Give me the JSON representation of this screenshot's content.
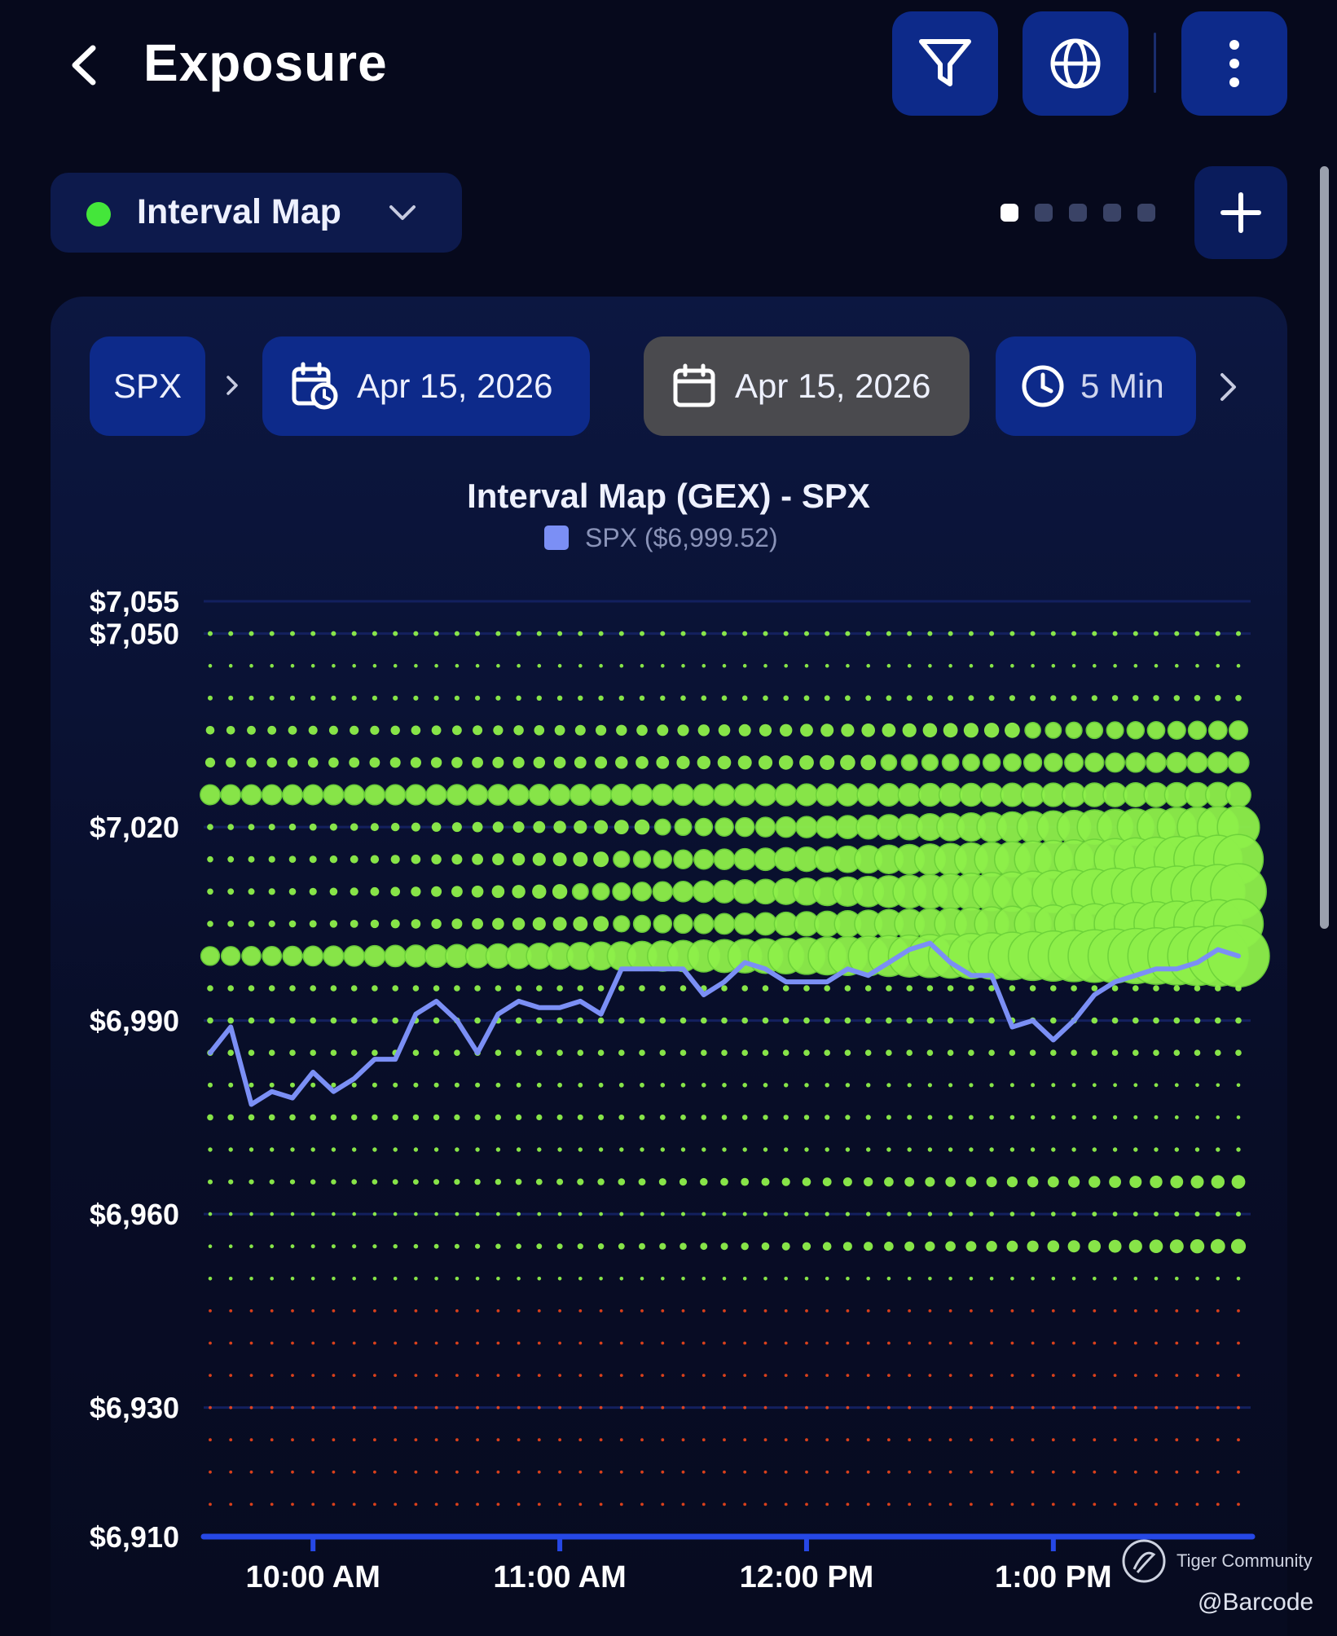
{
  "header": {
    "title": "Exposure",
    "icons": [
      "back-arrow-icon",
      "filter-icon",
      "globe-icon",
      "more-vertical-icon"
    ]
  },
  "selector": {
    "label": "Interval Map",
    "status_color": "#44e63a"
  },
  "pager": {
    "count": 5,
    "active_index": 0
  },
  "chips": {
    "symbol": "SPX",
    "start_date": "Apr 15, 2026",
    "end_date": "Apr 15, 2026",
    "interval": "5 Min"
  },
  "watermark": "Tiger Community",
  "credit": "@Barcode",
  "colors": {
    "accent": "#0d2a8a",
    "positive": "#8ef04a",
    "negative": "#ff4a1a",
    "price_line": "#7b8ff5"
  },
  "chart_data": {
    "type": "scatter",
    "title": "Interval Map (GEX) - SPX",
    "legend": [
      {
        "name": "SPX ($6,999.52)",
        "color": "#7b8ff5"
      }
    ],
    "y_ticks": [
      "$7,055",
      "$7,050",
      "$7,020",
      "$6,990",
      "$6,960",
      "$6,930",
      "$6,910"
    ],
    "y_tick_values": [
      7055,
      7050,
      7020,
      6990,
      6960,
      6930,
      6910
    ],
    "x_ticks": [
      "10:00 AM",
      "11:00 AM",
      "12:00 PM",
      "1:00 PM"
    ],
    "x_tick_minutes": [
      600,
      660,
      720,
      780
    ],
    "ylim": [
      6910,
      7055
    ],
    "x_range": {
      "start": "09:35",
      "end": "13:45",
      "step_minutes": 5
    },
    "strike_rows": [
      7050,
      7045,
      7040,
      7035,
      7030,
      7025,
      7020,
      7015,
      7010,
      7005,
      7000,
      6995,
      6990,
      6985,
      6980,
      6975,
      6970,
      6965,
      6960,
      6955,
      6950,
      6945,
      6940,
      6935,
      6930,
      6925,
      6920,
      6915
    ],
    "gex_profile": {
      "7050": {
        "sign": 1,
        "start": 0.08,
        "end": 0.08
      },
      "7045": {
        "sign": 1,
        "start": 0.06,
        "end": 0.06
      },
      "7040": {
        "sign": 1,
        "start": 0.08,
        "end": 0.1
      },
      "7035": {
        "sign": 1,
        "start": 0.14,
        "end": 0.3
      },
      "7030": {
        "sign": 1,
        "start": 0.16,
        "end": 0.34
      },
      "7025": {
        "sign": 1,
        "start": 0.32,
        "end": 0.4
      },
      "7020": {
        "sign": 1,
        "start": 0.1,
        "end": 0.68
      },
      "7015": {
        "sign": 1,
        "start": 0.1,
        "end": 0.8
      },
      "7010": {
        "sign": 1,
        "start": 0.1,
        "end": 0.9
      },
      "7005": {
        "sign": 1,
        "start": 0.1,
        "end": 0.8
      },
      "7000": {
        "sign": 1,
        "start": 0.3,
        "end": 1.0
      },
      "6995": {
        "sign": 1,
        "start": 0.1,
        "end": 0.1
      },
      "6990": {
        "sign": 1,
        "start": 0.1,
        "end": 0.1
      },
      "6985": {
        "sign": 1,
        "start": 0.1,
        "end": 0.1
      },
      "6980": {
        "sign": 1,
        "start": 0.08,
        "end": 0.06
      },
      "6975": {
        "sign": 1,
        "start": 0.1,
        "end": 0.06
      },
      "6970": {
        "sign": 1,
        "start": 0.07,
        "end": 0.07
      },
      "6965": {
        "sign": 1,
        "start": 0.08,
        "end": 0.22
      },
      "6960": {
        "sign": 1,
        "start": 0.06,
        "end": 0.08
      },
      "6955": {
        "sign": 1,
        "start": 0.06,
        "end": 0.24
      },
      "6950": {
        "sign": 1,
        "start": 0.06,
        "end": 0.06
      },
      "6945": {
        "sign": -1,
        "start": 0.05,
        "end": 0.05
      },
      "6940": {
        "sign": -1,
        "start": 0.05,
        "end": 0.05
      },
      "6935": {
        "sign": -1,
        "start": 0.05,
        "end": 0.05
      },
      "6930": {
        "sign": -1,
        "start": 0.05,
        "end": 0.05
      },
      "6925": {
        "sign": -1,
        "start": 0.05,
        "end": 0.05
      },
      "6920": {
        "sign": -1,
        "start": 0.05,
        "end": 0.05
      },
      "6915": {
        "sign": -1,
        "start": 0.05,
        "end": 0.05
      }
    },
    "spx_series": [
      6985,
      6989,
      6977,
      6979,
      6978,
      6982,
      6979,
      6981,
      6984,
      6984,
      6991,
      6993,
      6990,
      6985,
      6991,
      6993,
      6992,
      6992,
      6993,
      6991,
      6998,
      6998,
      6998,
      6998,
      6994,
      6996,
      6999,
      6998,
      6996,
      6996,
      6996,
      6998,
      6997,
      6999,
      7001,
      7002,
      6999,
      6997,
      6997,
      6989,
      6990,
      6987,
      6990,
      6994,
      6996,
      6997,
      6998,
      6998,
      6999,
      7001,
      7000
    ]
  }
}
